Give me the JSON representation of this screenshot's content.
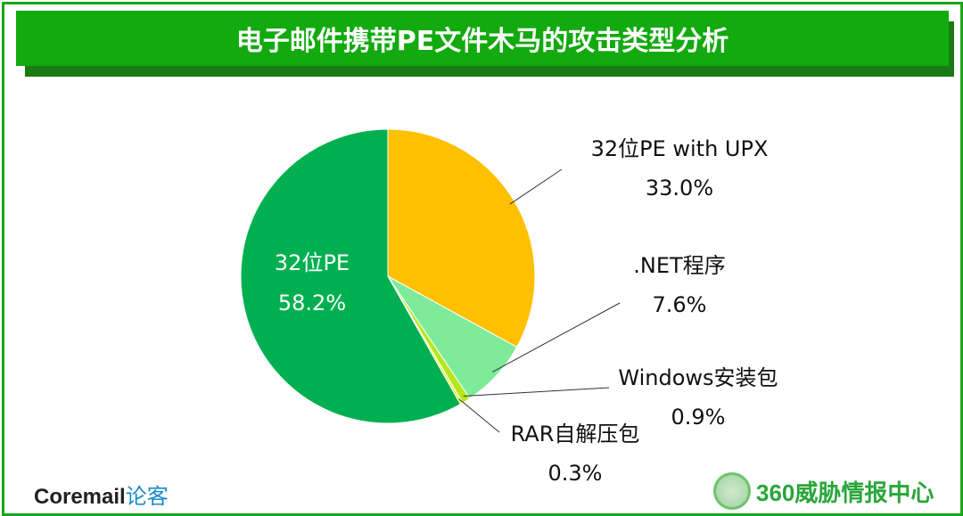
{
  "chart_data": {
    "type": "pie",
    "title": "电子邮件携带PE文件木马的攻击类型分析",
    "start_angle": "12 o'clock, clockwise",
    "slices": [
      {
        "label": "32位PE with UPX",
        "value": 33.0,
        "display": "33.0%",
        "color": "#FFC000"
      },
      {
        "label": ".NET程序",
        "value": 7.6,
        "display": "7.6%",
        "color": "#7DEB9A"
      },
      {
        "label": "Windows安装包",
        "value": 0.9,
        "display": "0.9%",
        "color": "#B5E61D"
      },
      {
        "label": "RAR自解压包",
        "value": 0.3,
        "display": "0.3%",
        "color": "#E8F040"
      },
      {
        "label": "32位PE",
        "value": 58.2,
        "display": "58.2%",
        "color": "#00B050"
      }
    ]
  },
  "logos": {
    "left_brand": "Coremail",
    "left_suffix": "论客",
    "right": "360威胁情报中心"
  }
}
